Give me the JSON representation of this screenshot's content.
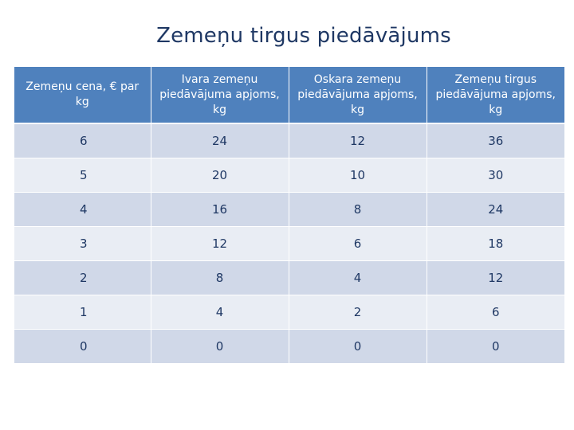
{
  "title": "Zemeņu tirgus piedāvājums",
  "table": {
    "headers": [
      "Zemeņu cena, € par kg",
      "Ivara zemeņu piedāvājuma apjoms, kg",
      "Oskara zemeņu piedāvājuma apjoms, kg",
      "Zemeņu tirgus piedāvājuma apjoms, kg"
    ],
    "rows": [
      [
        "6",
        "24",
        "12",
        "36"
      ],
      [
        "5",
        "20",
        "10",
        "30"
      ],
      [
        "4",
        "16",
        "8",
        "24"
      ],
      [
        "3",
        "12",
        "6",
        "18"
      ],
      [
        "2",
        "8",
        "4",
        "12"
      ],
      [
        "1",
        "4",
        "2",
        "6"
      ],
      [
        "0",
        "0",
        "0",
        "0"
      ]
    ]
  },
  "colors": {
    "header_bg": "#4f81bd",
    "row_band_dark": "#d0d8e8",
    "row_band_light": "#e9edf4",
    "title_text": "#1f3864"
  }
}
